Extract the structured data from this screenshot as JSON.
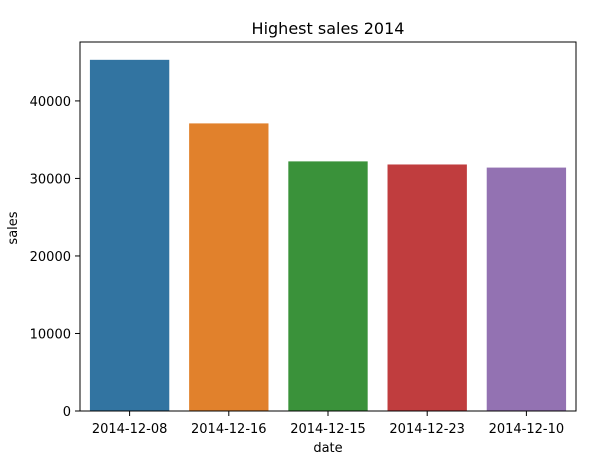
{
  "chart_data": {
    "type": "bar",
    "title": "Highest sales 2014",
    "xlabel": "date",
    "ylabel": "sales",
    "categories": [
      "2014-12-08",
      "2014-12-16",
      "2014-12-15",
      "2014-12-23",
      "2014-12-10"
    ],
    "values": [
      45300,
      37100,
      32200,
      31800,
      31400
    ],
    "colors": [
      "#3274a1",
      "#e1812c",
      "#3a923a",
      "#c03d3e",
      "#9372b2"
    ],
    "ylim": [
      0,
      47600
    ],
    "yticks": [
      0,
      10000,
      20000,
      30000,
      40000
    ],
    "ytick_labels": [
      "0",
      "10000",
      "20000",
      "30000",
      "40000"
    ],
    "grid": false,
    "legend": "none"
  }
}
